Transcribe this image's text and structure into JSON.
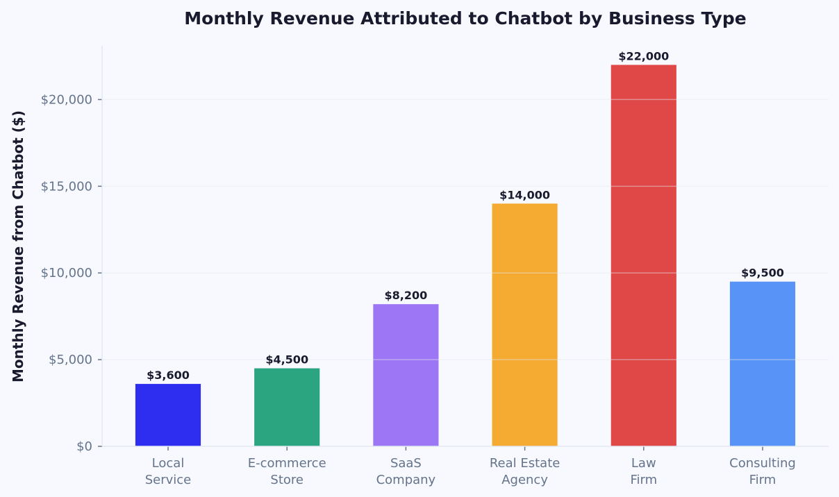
{
  "chart_data": {
    "type": "bar",
    "title": "Monthly Revenue Attributed to Chatbot by Business Type",
    "xlabel": "",
    "ylabel": "Monthly Revenue from Chatbot ($)",
    "categories": [
      [
        "Local",
        "Service"
      ],
      [
        "E-commerce",
        "Store"
      ],
      [
        "SaaS",
        "Company"
      ],
      [
        "Real Estate",
        "Agency"
      ],
      [
        "Law",
        "Firm"
      ],
      [
        "Consulting",
        "Firm"
      ]
    ],
    "values": [
      3600,
      4500,
      8200,
      14000,
      22000,
      9500
    ],
    "data_labels": [
      "$3,600",
      "$4,500",
      "$8,200",
      "$14,000",
      "$22,000",
      "$9,500"
    ],
    "colors": [
      "#2e2ef0",
      "#2ba57f",
      "#9d76f5",
      "#f5ab32",
      "#e04848",
      "#5893f8"
    ],
    "ylim": [
      0,
      23100
    ],
    "yticks": [
      0,
      5000,
      10000,
      15000,
      20000
    ],
    "ytick_labels": [
      "$0",
      "$5,000",
      "$10,000",
      "$15,000",
      "$20,000"
    ],
    "grid": "horizontal",
    "legend": "none"
  }
}
